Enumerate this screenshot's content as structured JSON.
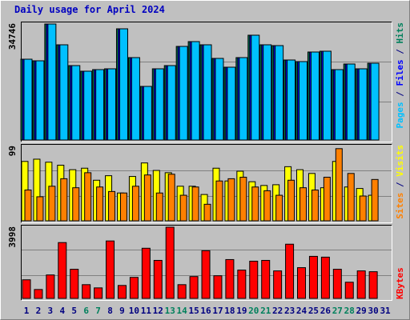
{
  "chart_data": [
    {
      "type": "bar",
      "title": "Daily usage for April 2024",
      "legend": "top",
      "legend_separator": " / ",
      "ylim": [
        0,
        34746
      ],
      "yticks": [
        34746
      ],
      "series": [
        {
          "name": "Hits",
          "color": "#00805c",
          "values": [
            24202,
            23723,
            34746,
            28516,
            22285,
            20608,
            21087,
            21327,
            33308,
            24681,
            16055,
            21327,
            22285,
            28036,
            29474,
            28516,
            24442,
            21806,
            24681,
            31391,
            28516,
            28276,
            23963,
            23483,
            26359,
            26598,
            21087,
            22764,
            21327,
            23004,
            null
          ]
        },
        {
          "name": "Files",
          "color": "#0000ff",
          "values": [
            24202,
            23723,
            34746,
            28516,
            22285,
            20608,
            21087,
            21327,
            33308,
            24681,
            16055,
            21327,
            22285,
            28036,
            29474,
            28516,
            24442,
            21806,
            24681,
            31391,
            28516,
            28276,
            23963,
            23483,
            26359,
            26598,
            21087,
            22764,
            21327,
            23004,
            null
          ]
        },
        {
          "name": "Pages",
          "color": "#00c0ff",
          "values": [
            24202,
            23723,
            34746,
            28516,
            22285,
            20608,
            21087,
            21327,
            33308,
            24681,
            16055,
            21327,
            22285,
            28036,
            29474,
            28516,
            24442,
            21806,
            24681,
            31391,
            28516,
            28276,
            23963,
            23483,
            26359,
            26598,
            21087,
            22764,
            21327,
            23004,
            null
          ]
        }
      ]
    },
    {
      "type": "bar",
      "legend": "top",
      "legend_separator": " / ",
      "ylim": [
        0,
        99
      ],
      "yticks": [
        99
      ],
      "series": [
        {
          "name": "Visits",
          "color": "#ffff00",
          "values": [
            79,
            82,
            78,
            74,
            68,
            70,
            54,
            60,
            37,
            59,
            77,
            67,
            64,
            46,
            46,
            35,
            70,
            53,
            66,
            52,
            47,
            48,
            72,
            68,
            63,
            44,
            79,
            45,
            43,
            34,
            null
          ]
        },
        {
          "name": "Sites",
          "color": "#ff8000",
          "values": [
            41,
            32,
            46,
            56,
            44,
            64,
            45,
            39,
            37,
            46,
            61,
            37,
            62,
            34,
            45,
            22,
            53,
            56,
            58,
            45,
            40,
            34,
            54,
            44,
            41,
            58,
            96,
            63,
            33,
            55,
            null
          ]
        }
      ]
    },
    {
      "type": "bar",
      "legend": "bottom",
      "ylim": [
        0,
        3998
      ],
      "yticks": [
        3998
      ],
      "categories": [
        "1",
        "2",
        "3",
        "4",
        "5",
        "6",
        "7",
        "8",
        "9",
        "10",
        "11",
        "12",
        "13",
        "14",
        "15",
        "16",
        "17",
        "18",
        "19",
        "20",
        "21",
        "22",
        "23",
        "24",
        "25",
        "26",
        "27",
        "28",
        "29",
        "30",
        "31"
      ],
      "category_colors": [
        "#000080",
        "#000080",
        "#000080",
        "#000080",
        "#000080",
        "#00805c",
        "#00805c",
        "#000080",
        "#000080",
        "#000080",
        "#000080",
        "#000080",
        "#00805c",
        "#00805c",
        "#000080",
        "#000080",
        "#000080",
        "#000080",
        "#000080",
        "#00805c",
        "#00805c",
        "#000080",
        "#000080",
        "#000080",
        "#000080",
        "#000080",
        "#00805c",
        "#00805c",
        "#000080",
        "#000080",
        "#000080"
      ],
      "series": [
        {
          "name": "KBytes",
          "color": "#ff0000",
          "values": [
            1045,
            500,
            1317,
            3135,
            1636,
            772,
            591,
            3226,
            727,
            1181,
            2817,
            2135,
            3998,
            772,
            1227,
            2680,
            1272,
            2181,
            1590,
            2090,
            2135,
            1545,
            3044,
            1726,
            2362,
            2317,
            1636,
            909,
            1545,
            1499,
            null
          ]
        }
      ]
    }
  ]
}
